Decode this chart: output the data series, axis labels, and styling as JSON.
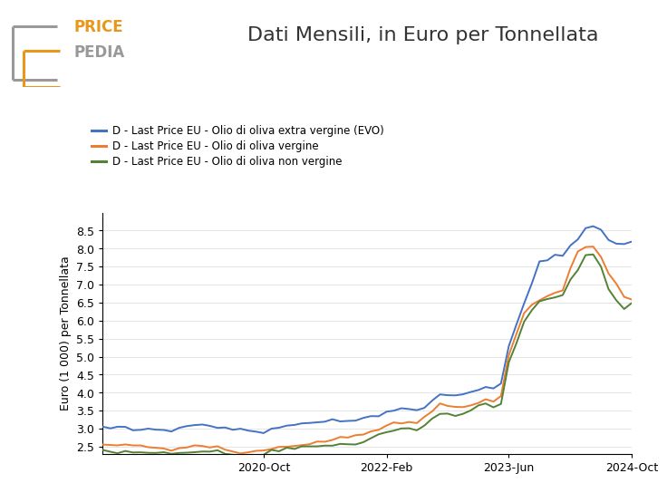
{
  "title": "Dati Mensili, in Euro per Tonnellata",
  "ylabel": "Euro (1 000) per Tonnellata",
  "legend": [
    "D - Last Price EU - Olio di oliva extra vergine (EVO)",
    "D - Last Price EU - Olio di oliva vergine",
    "D - Last Price EU - Olio di oliva non vergine"
  ],
  "colors": [
    "#4472C4",
    "#ED7D31",
    "#548235"
  ],
  "xtick_labels": [
    "2020-Oct",
    "2022-Feb",
    "2023-Jun",
    "2024-Oct"
  ],
  "ylim": [
    2.3,
    9.0
  ],
  "yticks": [
    2.5,
    3.0,
    3.5,
    4.0,
    4.5,
    5.0,
    5.5,
    6.0,
    6.5,
    7.0,
    7.5,
    8.0,
    8.5
  ],
  "logo_price_color": "#E8971A",
  "logo_pedia_color": "#999999",
  "logo_gray_bracket": "#999999",
  "background_color": "#ffffff",
  "linewidth": 1.4,
  "title_fontsize": 16,
  "legend_fontsize": 8.5,
  "tick_fontsize": 9,
  "ylabel_fontsize": 9
}
